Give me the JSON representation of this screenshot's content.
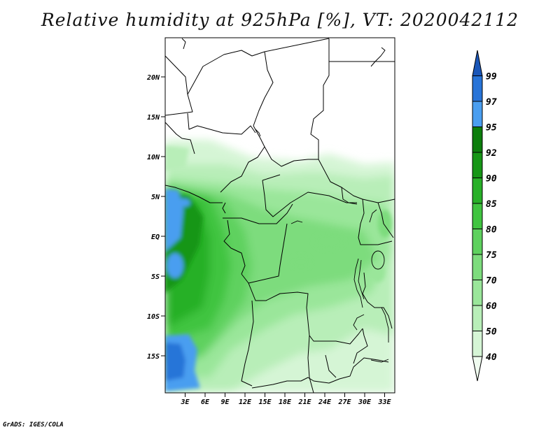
{
  "title": "Relative humidity at 925hPa [%], VT: 2020042112",
  "credit": "GrADS: IGES/COLA",
  "map": {
    "lat_labels": [
      "20N",
      "15N",
      "10N",
      "5N",
      "EQ",
      "5S",
      "10S",
      "15S"
    ],
    "lon_labels": [
      "3E",
      "6E",
      "9E",
      "12E",
      "15E",
      "18E",
      "21E",
      "24E",
      "27E",
      "30E",
      "33E"
    ]
  },
  "colorbar": {
    "levels": [
      "40",
      "50",
      "60",
      "70",
      "75",
      "80",
      "85",
      "90",
      "92",
      "95",
      "97",
      "99"
    ],
    "colors": [
      "#f0fcf0",
      "#d5f5d5",
      "#b8eeb8",
      "#9ae69a",
      "#7ddc7d",
      "#5ed15e",
      "#40c440",
      "#28b028",
      "#169616",
      "#0c7e0c",
      "#4a9ef0",
      "#2874d8",
      "#1a56b8"
    ]
  }
}
